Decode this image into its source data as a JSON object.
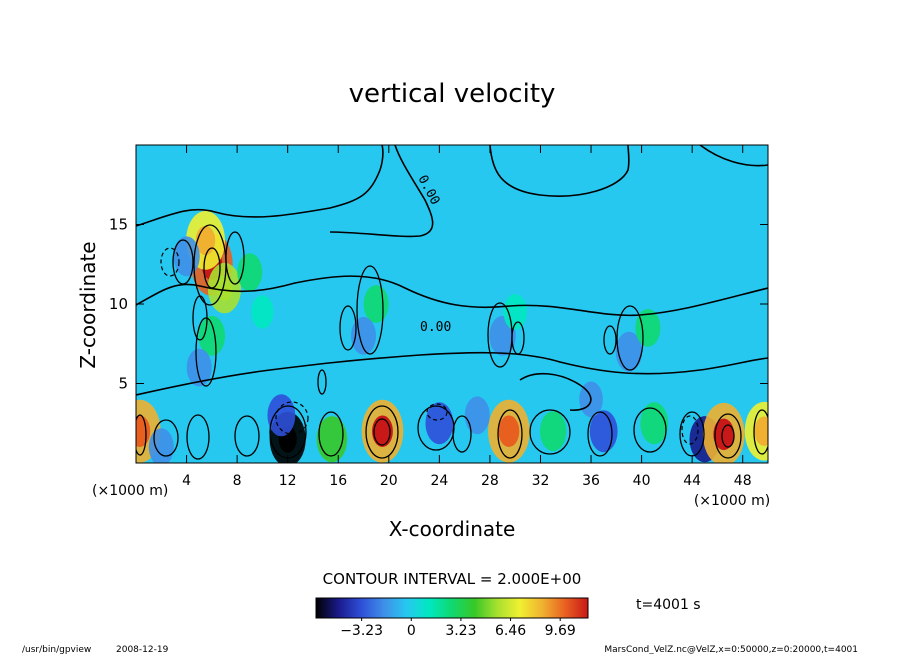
{
  "chart_data": {
    "type": "heatmap",
    "title": "vertical velocity",
    "xlabel": "X-coordinate",
    "ylabel": "Z-coordinate",
    "x_unit": "(×1000 m)",
    "xlim": [
      0,
      50
    ],
    "ylim": [
      0,
      20
    ],
    "x_ticks": [
      "4",
      "8",
      "12",
      "16",
      "20",
      "24",
      "28",
      "32",
      "36",
      "40",
      "44",
      "48"
    ],
    "y_ticks": [
      "5",
      "10",
      "15"
    ],
    "contour_interval_text": "CONTOUR INTERVAL = 2.000E+00",
    "contour_label": "0.00",
    "time_text": "t=4001 s",
    "colorbar": {
      "ticks": [
        "−3.23",
        "0",
        "3.23",
        "6.46",
        "9.69"
      ],
      "tick_values": [
        -3.23,
        0,
        3.23,
        6.46,
        9.69
      ],
      "range": [
        -6.2,
        11.5
      ],
      "colors": [
        "#000000",
        "#1a1a8c",
        "#2f4fd8",
        "#3f8fe8",
        "#27c8f0",
        "#00e8c0",
        "#10d870",
        "#38c828",
        "#a8e030",
        "#f0f030",
        "#f0b030",
        "#e86020",
        "#c81818"
      ]
    },
    "cells": [
      {
        "x": 6,
        "z": 12.5,
        "value": 9.5
      },
      {
        "x": 5.5,
        "z": 14,
        "value": 7
      },
      {
        "x": 7,
        "z": 11,
        "value": 5
      },
      {
        "x": 4,
        "z": 13,
        "value": -2.5
      },
      {
        "x": 9,
        "z": 12,
        "value": 2
      },
      {
        "x": 6,
        "z": 8,
        "value": 2.5
      },
      {
        "x": 5,
        "z": 6,
        "value": -2
      },
      {
        "x": 12,
        "z": 1.5,
        "value": -6
      },
      {
        "x": 11.5,
        "z": 3,
        "value": -3
      },
      {
        "x": 19.5,
        "z": 2,
        "value": 9
      },
      {
        "x": 15.5,
        "z": 1.5,
        "value": 4
      },
      {
        "x": 24,
        "z": 2.5,
        "value": -3
      },
      {
        "x": 29.5,
        "z": 2,
        "value": 8
      },
      {
        "x": 27,
        "z": 3,
        "value": -2
      },
      {
        "x": 45,
        "z": 1.5,
        "value": -4
      },
      {
        "x": 46.5,
        "z": 1.8,
        "value": 9
      },
      {
        "x": 37,
        "z": 2,
        "value": -3
      },
      {
        "x": 41,
        "z": 2.5,
        "value": 3
      },
      {
        "x": 0.3,
        "z": 2,
        "value": 8
      },
      {
        "x": 49.7,
        "z": 2,
        "value": 7
      },
      {
        "x": 2,
        "z": 1,
        "value": -2
      },
      {
        "x": 29,
        "z": 8,
        "value": -2.5
      },
      {
        "x": 30,
        "z": 9.5,
        "value": 1.5
      },
      {
        "x": 39,
        "z": 7,
        "value": -2.5
      },
      {
        "x": 40.5,
        "z": 8.5,
        "value": 2
      },
      {
        "x": 19,
        "z": 10,
        "value": 2
      },
      {
        "x": 18,
        "z": 8,
        "value": -2
      },
      {
        "x": 10,
        "z": 9.5,
        "value": 1
      },
      {
        "x": 36,
        "z": 4,
        "value": -1.5
      },
      {
        "x": 14,
        "z": 5,
        "value": -1
      },
      {
        "x": 33,
        "z": 2,
        "value": 2.5
      }
    ]
  },
  "footer": {
    "program": "/usr/bin/gpview",
    "date": "2008-12-19",
    "source": "MarsCond_VelZ.nc@VelZ,x=0:50000,z=0:20000,t=4001"
  }
}
